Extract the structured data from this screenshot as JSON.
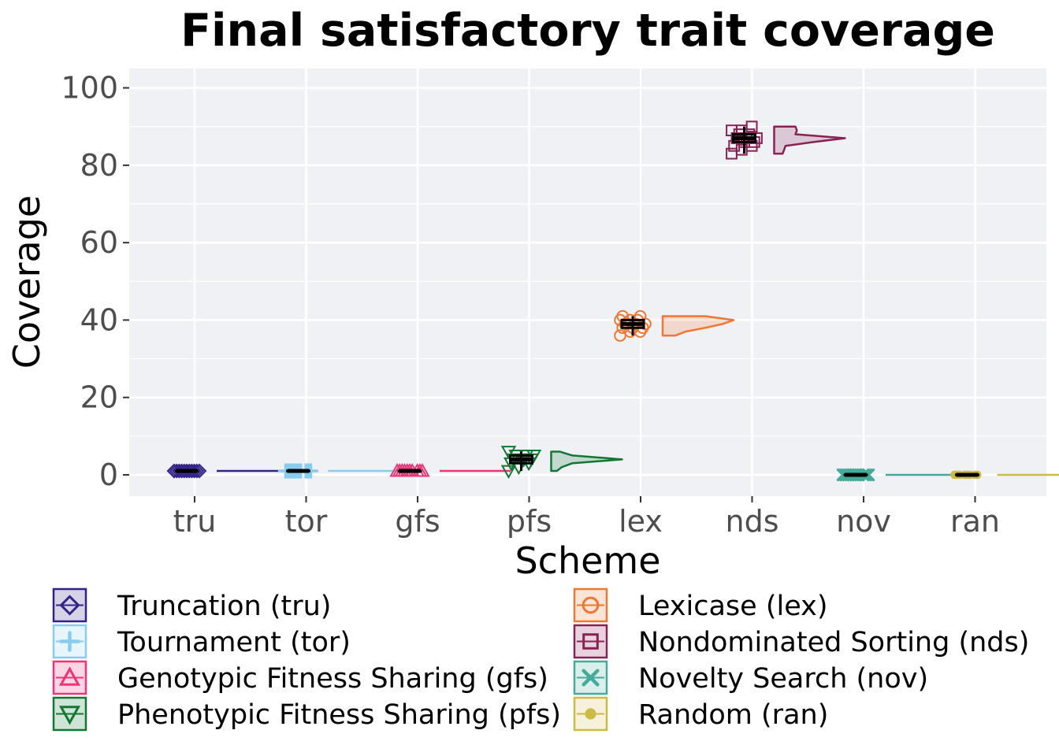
{
  "chart_data": {
    "type": "violin",
    "title": "Final satisfactory trait coverage",
    "xlabel": "Scheme",
    "ylabel": "Coverage",
    "ylim": [
      -5.5,
      105
    ],
    "yticks": [
      0,
      20,
      40,
      60,
      80,
      100
    ],
    "categories": [
      "tru",
      "tor",
      "gfs",
      "pfs",
      "lex",
      "nds",
      "nov",
      "ran"
    ],
    "grid": true,
    "legend_placement": "bottom",
    "series": [
      {
        "code": "tru",
        "name": "Truncation (tru)",
        "color": "#332288",
        "marker": "diamond",
        "median": 1,
        "q1": 1,
        "q3": 1,
        "min": 1,
        "max": 1,
        "points": [
          1,
          1,
          1,
          1,
          1,
          1,
          1,
          1,
          1,
          1,
          1,
          1
        ],
        "density": [
          [
            1,
            1
          ]
        ]
      },
      {
        "code": "tor",
        "name": "Tournament (tor)",
        "color": "#88CCEE",
        "marker": "plus",
        "median": 1,
        "q1": 1,
        "q3": 1,
        "min": 1,
        "max": 1,
        "points": [
          1,
          1,
          1,
          1,
          1,
          1,
          1,
          1,
          1,
          1
        ],
        "density": [
          [
            1,
            1
          ]
        ]
      },
      {
        "code": "gfs",
        "name": "Genotypic Fitness Sharing (gfs)",
        "color": "#EE3377",
        "marker": "triangle-up",
        "median": 1,
        "q1": 1,
        "q3": 1,
        "min": 1,
        "max": 1,
        "points": [
          1,
          1,
          1,
          1,
          1,
          1,
          1,
          1,
          1,
          1
        ],
        "density": [
          [
            1,
            1
          ]
        ]
      },
      {
        "code": "pfs",
        "name": "Phenotypic Fitness Sharing (pfs)",
        "color": "#117733",
        "marker": "triangle-down",
        "median": 4,
        "q1": 3,
        "q3": 5,
        "min": 1,
        "max": 6,
        "points": [
          1,
          2,
          3,
          3,
          4,
          4,
          4,
          4,
          5,
          5,
          5,
          6
        ],
        "density": [
          [
            1,
            0.08
          ],
          [
            2,
            0.15
          ],
          [
            3,
            0.3
          ],
          [
            4,
            1
          ],
          [
            5,
            0.3
          ],
          [
            6,
            0.12
          ]
        ]
      },
      {
        "code": "lex",
        "name": "Lexicase (lex)",
        "color": "#EE7733",
        "marker": "circle",
        "median": 39,
        "q1": 38,
        "q3": 40,
        "min": 36,
        "max": 41,
        "points": [
          36,
          37,
          37,
          38,
          38,
          38,
          39,
          39,
          39,
          39,
          40,
          40,
          40,
          41,
          41
        ],
        "density": [
          [
            36,
            0.18
          ],
          [
            37,
            0.32
          ],
          [
            38,
            0.6
          ],
          [
            39,
            0.85
          ],
          [
            40,
            1
          ],
          [
            41,
            0.6
          ]
        ]
      },
      {
        "code": "nds",
        "name": "Nondominated Sorting (nds)",
        "color": "#882255",
        "marker": "square",
        "median": 87,
        "q1": 86,
        "q3": 88,
        "min": 83,
        "max": 90,
        "points": [
          83,
          84,
          85,
          85,
          86,
          86,
          87,
          87,
          87,
          88,
          88,
          89,
          89,
          90
        ],
        "density": [
          [
            83,
            0.12
          ],
          [
            84,
            0.14
          ],
          [
            85,
            0.16
          ],
          [
            86,
            0.55
          ],
          [
            87,
            1
          ],
          [
            88,
            0.3
          ],
          [
            89,
            0.32
          ],
          [
            90,
            0.3
          ]
        ]
      },
      {
        "code": "nov",
        "name": "Novelty Search (nov)",
        "color": "#44AA99",
        "marker": "x",
        "median": 0,
        "q1": 0,
        "q3": 0,
        "min": 0,
        "max": 0,
        "points": [
          0,
          0,
          0,
          0,
          0,
          0,
          0,
          0,
          0,
          0
        ],
        "density": [
          [
            0,
            1
          ]
        ]
      },
      {
        "code": "ran",
        "name": "Random (ran)",
        "color": "#CCBB44",
        "marker": "dot",
        "median": 0,
        "q1": 0,
        "q3": 0,
        "min": 0,
        "max": 0,
        "points": [
          0,
          0,
          0,
          0,
          0,
          0,
          0,
          0
        ],
        "density": [
          [
            0,
            1
          ]
        ]
      }
    ]
  }
}
